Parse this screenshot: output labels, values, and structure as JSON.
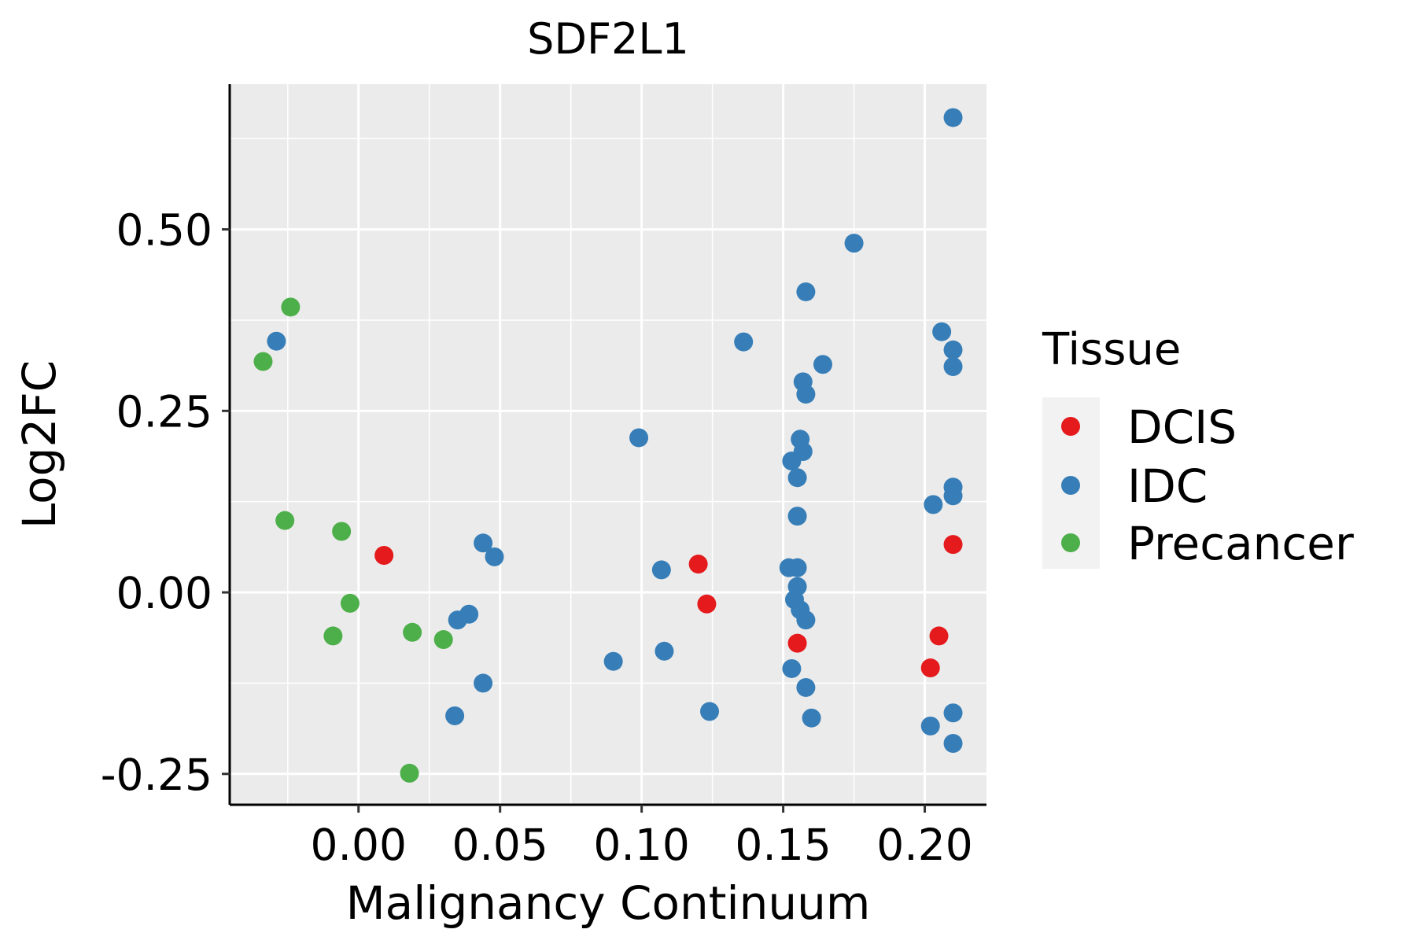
{
  "chart_data": {
    "type": "scatter",
    "title": "SDF2L1",
    "xlabel": "Malignancy Continuum",
    "ylabel": "Log2FC",
    "xlim": [
      -0.0455,
      0.2218
    ],
    "ylim": [
      -0.2925,
      0.7
    ],
    "xticks": [
      0.0,
      0.05,
      0.1,
      0.15,
      0.2
    ],
    "xtick_labels": [
      "0.00",
      "0.05",
      "0.10",
      "0.15",
      "0.20"
    ],
    "yticks": [
      -0.25,
      0.0,
      0.25,
      0.5
    ],
    "ytick_labels": [
      "-0.25",
      "0.00",
      "0.25",
      "0.50"
    ],
    "grid": true,
    "legend": {
      "title": "Tissue",
      "placement": "right",
      "entries": [
        "DCIS",
        "IDC",
        "Precancer"
      ]
    },
    "colors": {
      "DCIS": "#E41A1C",
      "IDC": "#377EB8",
      "Precancer": "#4DAF4A",
      "panel": "#EBEBEB"
    },
    "series": [
      {
        "name": "Precancer",
        "points": [
          [
            -0.0337,
            0.318
          ],
          [
            -0.024,
            0.393
          ],
          [
            -0.026,
            0.099
          ],
          [
            -0.006,
            0.084
          ],
          [
            -0.003,
            -0.015
          ],
          [
            -0.009,
            -0.06
          ],
          [
            0.019,
            -0.055
          ],
          [
            0.03,
            -0.065
          ],
          [
            0.018,
            -0.249
          ]
        ]
      },
      {
        "name": "DCIS",
        "points": [
          [
            0.009,
            0.051
          ],
          [
            0.12,
            0.039
          ],
          [
            0.123,
            -0.016
          ],
          [
            0.155,
            -0.07
          ],
          [
            0.21,
            0.066
          ],
          [
            0.205,
            -0.06
          ],
          [
            0.202,
            -0.104
          ]
        ]
      },
      {
        "name": "IDC",
        "points": [
          [
            -0.029,
            0.346
          ],
          [
            0.044,
            0.068
          ],
          [
            0.048,
            0.049
          ],
          [
            0.039,
            -0.03
          ],
          [
            0.035,
            -0.038
          ],
          [
            0.044,
            -0.125
          ],
          [
            0.034,
            -0.17
          ],
          [
            0.099,
            0.213
          ],
          [
            0.107,
            0.031
          ],
          [
            0.108,
            -0.081
          ],
          [
            0.09,
            -0.095
          ],
          [
            0.124,
            -0.164
          ],
          [
            0.136,
            0.345
          ],
          [
            0.175,
            0.481
          ],
          [
            0.158,
            0.414
          ],
          [
            0.164,
            0.314
          ],
          [
            0.157,
            0.29
          ],
          [
            0.158,
            0.273
          ],
          [
            0.156,
            0.211
          ],
          [
            0.157,
            0.194
          ],
          [
            0.153,
            0.181
          ],
          [
            0.155,
            0.158
          ],
          [
            0.155,
            0.105
          ],
          [
            0.152,
            0.034
          ],
          [
            0.155,
            0.034
          ],
          [
            0.155,
            0.008
          ],
          [
            0.154,
            -0.01
          ],
          [
            0.156,
            -0.024
          ],
          [
            0.158,
            -0.038
          ],
          [
            0.153,
            -0.105
          ],
          [
            0.158,
            -0.131
          ],
          [
            0.16,
            -0.173
          ],
          [
            0.21,
            0.654
          ],
          [
            0.206,
            0.359
          ],
          [
            0.21,
            0.334
          ],
          [
            0.21,
            0.311
          ],
          [
            0.21,
            0.145
          ],
          [
            0.21,
            0.133
          ],
          [
            0.203,
            0.121
          ],
          [
            0.21,
            -0.166
          ],
          [
            0.202,
            -0.184
          ],
          [
            0.21,
            -0.208
          ]
        ]
      }
    ]
  }
}
